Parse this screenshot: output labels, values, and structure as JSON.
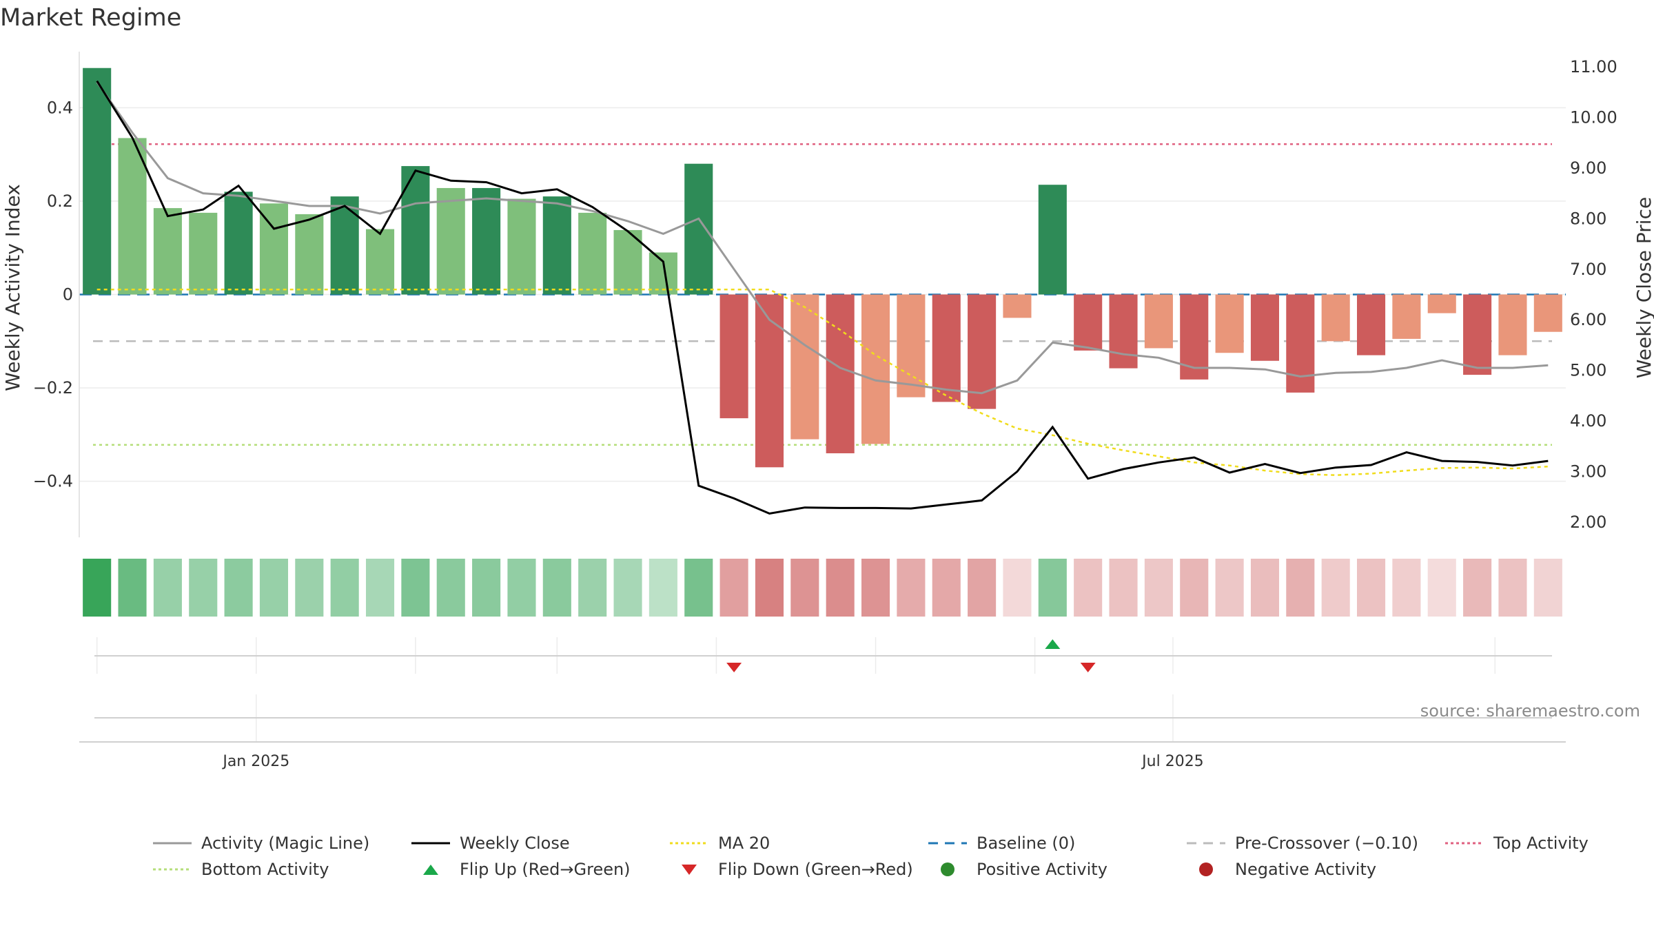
{
  "title": "Market Regime",
  "source": "source: sharemaestro.com",
  "colors": {
    "green_strong": "#2e8b57",
    "green_light": "#7fbf7b",
    "red_strong": "#cd5c5c",
    "red_light": "#e9967a",
    "magic_line": "#999999",
    "weekly_close": "#000000",
    "ma20": "#f0dc1c",
    "baseline": "#1f77b4",
    "pre_crossover": "#bbbbbb",
    "top_activity": "#e06080",
    "bottom_activity": "#b5de7a",
    "flip_up": "#1aa84a",
    "flip_down": "#d62728",
    "positive": "#2e8b2e",
    "negative": "#b22222"
  },
  "chart_data": {
    "type": "bar",
    "title": "Market Regime",
    "ylabel": "Weekly Activity Index",
    "y2label": "Weekly Close Price",
    "ylim": [
      -0.52,
      0.52
    ],
    "y2lim": [
      1.7,
      11.3
    ],
    "yticks": [
      {
        "v": 0.4,
        "label": "0.4"
      },
      {
        "v": 0.2,
        "label": "0.2"
      },
      {
        "v": 0,
        "label": "0"
      },
      {
        "v": -0.2,
        "label": "−0.2"
      },
      {
        "v": -0.4,
        "label": "−0.4"
      }
    ],
    "y2ticks": [
      {
        "v": 11,
        "label": "11.00"
      },
      {
        "v": 10,
        "label": "10.00"
      },
      {
        "v": 9,
        "label": "9.00"
      },
      {
        "v": 8,
        "label": "8.00"
      },
      {
        "v": 7,
        "label": "7.00"
      },
      {
        "v": 6,
        "label": "6.00"
      },
      {
        "v": 5,
        "label": "5.00"
      },
      {
        "v": 4,
        "label": "4.00"
      },
      {
        "v": 3,
        "label": "3.00"
      },
      {
        "v": 2,
        "label": "2.00"
      }
    ],
    "xticks": [
      {
        "index": 4.5,
        "label": "Jan 2025"
      },
      {
        "index": 30.4,
        "label": "Jul 2025"
      }
    ],
    "activity": [
      0.485,
      0.335,
      0.185,
      0.175,
      0.22,
      0.195,
      0.172,
      0.21,
      0.14,
      0.275,
      0.228,
      0.228,
      0.205,
      0.21,
      0.175,
      0.138,
      0.09,
      0.28,
      -0.265,
      -0.37,
      -0.31,
      -0.34,
      -0.32,
      -0.22,
      -0.23,
      -0.245,
      -0.05,
      0.235,
      -0.12,
      -0.158,
      -0.115,
      -0.182,
      -0.125,
      -0.142,
      -0.21,
      -0.1,
      -0.13,
      -0.095,
      -0.04,
      -0.172,
      -0.13,
      -0.08
    ],
    "intensity": [
      "strong",
      "light",
      "light",
      "light",
      "strong",
      "light",
      "light",
      "strong",
      "light",
      "strong",
      "light",
      "strong",
      "light",
      "strong",
      "light",
      "light",
      "light",
      "strong",
      "strong",
      "strong",
      "light",
      "strong",
      "light",
      "light",
      "strong",
      "strong",
      "light",
      "strong",
      "strong",
      "strong",
      "light",
      "strong",
      "light",
      "strong",
      "strong",
      "light",
      "strong",
      "light",
      "light",
      "strong",
      "light",
      "light"
    ],
    "magic_line": [
      10.7,
      9.7,
      8.8,
      8.5,
      8.45,
      8.35,
      8.25,
      8.25,
      8.1,
      8.3,
      8.35,
      8.4,
      8.35,
      8.3,
      8.15,
      7.95,
      7.7,
      8.0,
      7.0,
      6.0,
      5.5,
      5.05,
      4.8,
      4.72,
      4.62,
      4.55,
      4.8,
      5.55,
      5.45,
      5.32,
      5.25,
      5.05,
      5.05,
      5.02,
      4.88,
      4.95,
      4.97,
      5.05,
      5.2,
      5.05,
      5.05,
      5.1
    ],
    "weekly_close": [
      10.72,
      9.6,
      8.05,
      8.18,
      8.65,
      7.8,
      7.98,
      8.25,
      7.7,
      8.95,
      8.75,
      8.72,
      8.5,
      8.58,
      8.23,
      7.75,
      7.15,
      2.72,
      2.47,
      2.17,
      2.29,
      2.28,
      2.28,
      2.27,
      2.35,
      2.43,
      3.0,
      3.88,
      2.86,
      3.05,
      3.18,
      3.28,
      2.98,
      3.15,
      2.97,
      3.08,
      3.13,
      3.38,
      3.21,
      3.19,
      3.12,
      3.21
    ],
    "ma20": [
      6.6,
      6.6,
      6.6,
      6.6,
      6.6,
      6.6,
      6.6,
      6.6,
      6.6,
      6.6,
      6.6,
      6.6,
      6.6,
      6.6,
      6.6,
      6.6,
      6.6,
      6.6,
      6.6,
      6.6,
      6.25,
      5.8,
      5.3,
      4.9,
      4.5,
      4.15,
      3.85,
      3.72,
      3.55,
      3.42,
      3.3,
      3.18,
      3.12,
      3.02,
      2.95,
      2.93,
      2.96,
      3.02,
      3.07,
      3.08,
      3.06,
      3.1
    ],
    "baseline": 0,
    "pre_crossover": -0.1,
    "top_activity": 0.322,
    "bottom_activity": -0.322,
    "heat_strength": [
      0.95,
      0.72,
      0.5,
      0.5,
      0.55,
      0.5,
      0.48,
      0.52,
      0.42,
      0.62,
      0.56,
      0.56,
      0.52,
      0.56,
      0.48,
      0.42,
      0.32,
      0.65,
      0.55,
      0.72,
      0.62,
      0.65,
      0.62,
      0.48,
      0.5,
      0.52,
      0.22,
      0.58,
      0.35,
      0.35,
      0.32,
      0.42,
      0.32,
      0.38,
      0.45,
      0.3,
      0.35,
      0.28,
      0.2,
      0.4,
      0.35,
      0.25
    ],
    "flip_up_index": [
      27
    ],
    "flip_down_index": [
      18,
      28
    ],
    "legend": [
      {
        "label": "Activity (Magic Line)",
        "style": "solid-gray"
      },
      {
        "label": "Weekly Close",
        "style": "solid-black"
      },
      {
        "label": "MA 20",
        "style": "dotted-yellow"
      },
      {
        "label": "Baseline (0)",
        "style": "dashed-blue"
      },
      {
        "label": "Pre-Crossover (−0.10)",
        "style": "dashed-lightgray"
      },
      {
        "label": "Top Activity",
        "style": "dotted-pink"
      },
      {
        "label": "Bottom Activity",
        "style": "dotted-green"
      },
      {
        "label": "Flip Up (Red→Green)",
        "style": "triangle-up"
      },
      {
        "label": "Flip Down (Green→Red)",
        "style": "triangle-down"
      },
      {
        "label": "Positive Activity",
        "style": "dot-green"
      },
      {
        "label": "Negative Activity",
        "style": "dot-red"
      }
    ]
  }
}
